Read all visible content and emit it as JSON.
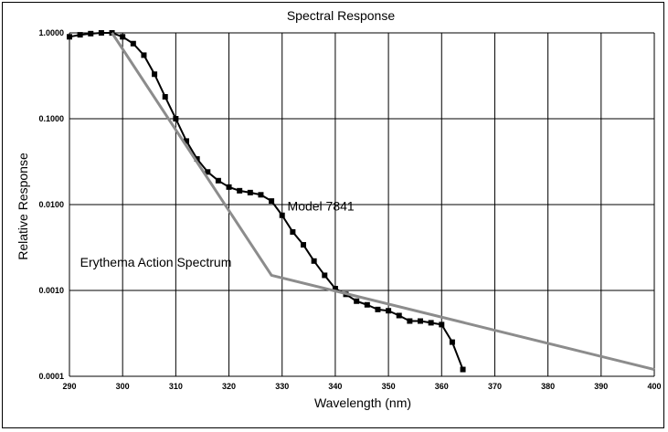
{
  "chart_data": {
    "type": "line",
    "title": "Spectral Response",
    "xlabel": "Wavelength (nm)",
    "ylabel": "Relative Response",
    "xlim": [
      290,
      400
    ],
    "ylim": [
      0.0001,
      1.0
    ],
    "yscale": "log",
    "grid": true,
    "x_ticks": [
      290,
      300,
      310,
      320,
      330,
      340,
      350,
      360,
      370,
      380,
      390,
      400
    ],
    "y_ticks": [
      {
        "value": 1.0,
        "label": "1.0000"
      },
      {
        "value": 0.1,
        "label": "0.1000"
      },
      {
        "value": 0.01,
        "label": "0.0100"
      },
      {
        "value": 0.001,
        "label": "0.0010"
      },
      {
        "value": 0.0001,
        "label": "0.0001"
      }
    ],
    "series": [
      {
        "name": "Model 7841",
        "color": "#000000",
        "marker": "square",
        "x": [
          290,
          292,
          294,
          296,
          298,
          300,
          302,
          304,
          306,
          308,
          310,
          312,
          314,
          316,
          318,
          320,
          322,
          324,
          326,
          328,
          330,
          332,
          334,
          336,
          338,
          340,
          342,
          344,
          346,
          348,
          350,
          352,
          354,
          356,
          358,
          360,
          362,
          364
        ],
        "y": [
          0.9,
          0.95,
          0.98,
          1.0,
          1.0,
          0.9,
          0.75,
          0.55,
          0.33,
          0.18,
          0.1,
          0.055,
          0.034,
          0.024,
          0.019,
          0.016,
          0.0145,
          0.0138,
          0.013,
          0.011,
          0.0075,
          0.0048,
          0.0034,
          0.0022,
          0.0015,
          0.00105,
          0.0009,
          0.00075,
          0.00068,
          0.0006,
          0.00058,
          0.00051,
          0.00044,
          0.00044,
          0.00042,
          0.0004,
          0.00025,
          0.00012
        ]
      },
      {
        "name": "Erythema Action Spectrum",
        "color": "#8c8c8c",
        "marker": "none",
        "x": [
          298,
          328,
          400
        ],
        "y": [
          1.0,
          0.0015,
          0.00012
        ]
      }
    ],
    "annotations": [
      {
        "text": "Model 7841",
        "x": 331,
        "y": 0.0085
      },
      {
        "text": "Erythema Action Spectrum",
        "x": 292,
        "y": 0.0019
      }
    ]
  }
}
